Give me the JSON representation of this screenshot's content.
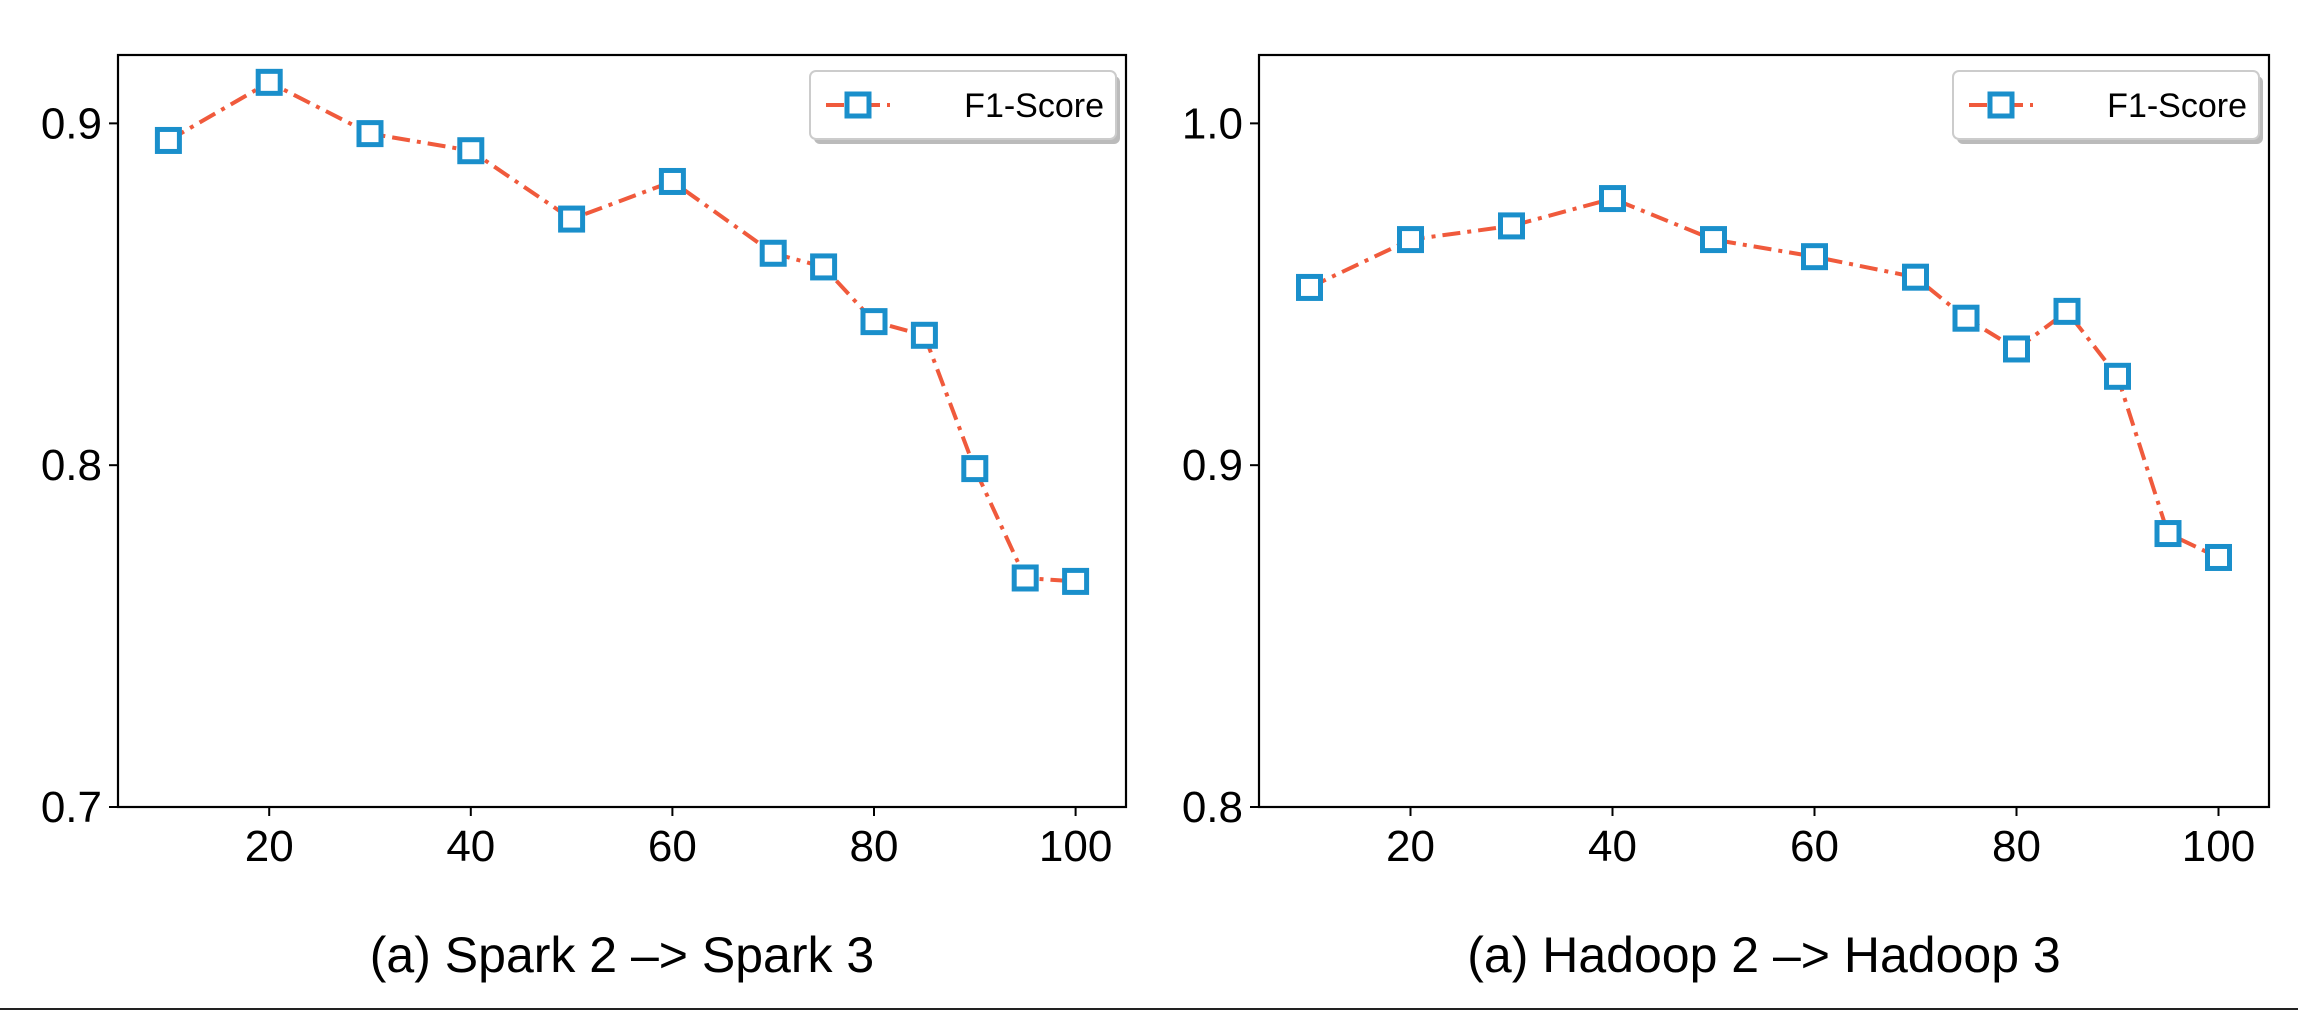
{
  "chart_data": [
    {
      "type": "line",
      "caption": "(a) Spark 2 –> Spark 3",
      "x": [
        10,
        20,
        30,
        40,
        50,
        60,
        70,
        75,
        80,
        85,
        90,
        95,
        100
      ],
      "series": [
        {
          "name": "F1-Score",
          "values": [
            0.895,
            0.912,
            0.897,
            0.892,
            0.872,
            0.883,
            0.862,
            0.858,
            0.842,
            0.838,
            0.799,
            0.767,
            0.766
          ]
        }
      ],
      "xlim": [
        5,
        105
      ],
      "ylim": [
        0.7,
        0.92
      ],
      "xticks": [
        20,
        40,
        60,
        80,
        100
      ],
      "xtick_labels": [
        "20",
        "40",
        "60",
        "80",
        "100"
      ],
      "yticks": [
        0.7,
        0.8,
        0.9
      ],
      "ytick_labels": [
        "0.7",
        "0.8",
        "0.9"
      ],
      "legend_position": "top-right",
      "grid": false
    },
    {
      "type": "line",
      "caption": "(a) Hadoop 2 –> Hadoop 3",
      "x": [
        10,
        20,
        30,
        40,
        50,
        60,
        70,
        75,
        80,
        85,
        90,
        95,
        100
      ],
      "series": [
        {
          "name": "F1-Score",
          "values": [
            0.952,
            0.966,
            0.97,
            0.978,
            0.966,
            0.961,
            0.955,
            0.943,
            0.934,
            0.945,
            0.926,
            0.88,
            0.873
          ]
        }
      ],
      "xlim": [
        5,
        105
      ],
      "ylim": [
        0.8,
        1.02
      ],
      "xticks": [
        20,
        40,
        60,
        80,
        100
      ],
      "xtick_labels": [
        "20",
        "40",
        "60",
        "80",
        "100"
      ],
      "yticks": [
        0.8,
        0.9,
        1.0
      ],
      "ytick_labels": [
        "0.8",
        "0.9",
        "1.0"
      ],
      "legend_position": "top-right",
      "grid": false
    }
  ],
  "style": {
    "line_color": "#f05a3c",
    "marker_color": "#1a8fcb",
    "marker_shape": "square-open",
    "line_style": "dash-dot",
    "axis_color": "#000000"
  }
}
